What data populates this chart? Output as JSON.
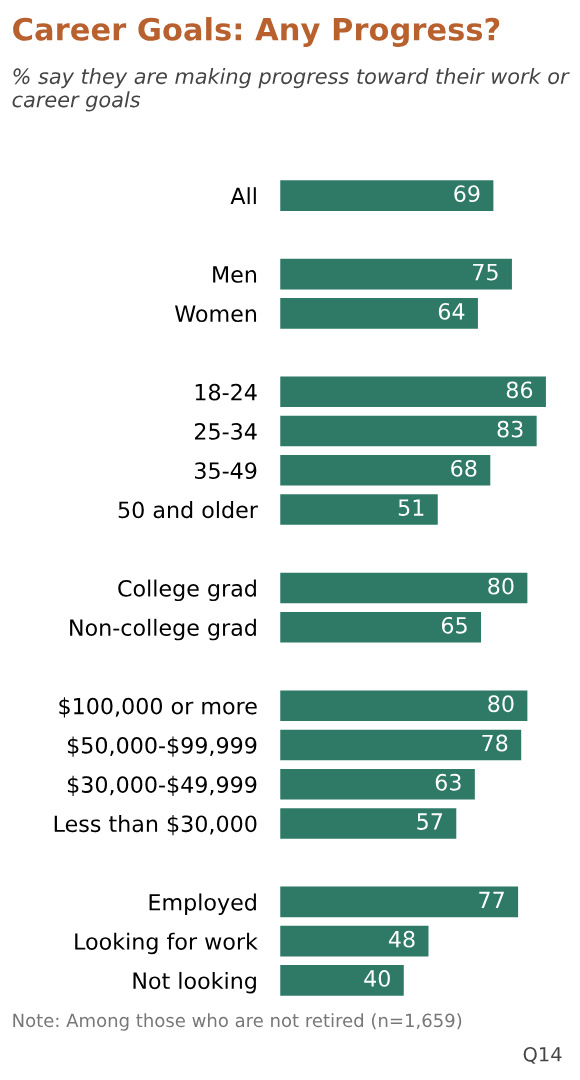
{
  "chart_data": {
    "type": "bar",
    "orientation": "horizontal",
    "title": "Career Goals: Any Progress?",
    "subtitle": "% say they are making progress toward their work or career goals",
    "categories": [
      "All",
      null,
      "Men",
      "Women",
      null,
      "18-24",
      "25-34",
      "35-49",
      "50 and older",
      null,
      "College grad",
      "Non-college grad",
      null,
      "$100,000 or more",
      "$50,000-$99,999",
      "$30,000-$49,999",
      "Less than $30,000",
      null,
      "Employed",
      "Looking for work",
      "Not looking"
    ],
    "values": [
      69,
      null,
      75,
      64,
      null,
      86,
      83,
      68,
      51,
      null,
      80,
      65,
      null,
      80,
      78,
      63,
      57,
      null,
      77,
      48,
      40
    ],
    "color": "#2f7a66",
    "data_labels": true,
    "grid": false,
    "legend": false,
    "annotations": [
      "Note: Among those who are not retired (n=1,659)",
      "Q14"
    ]
  }
}
